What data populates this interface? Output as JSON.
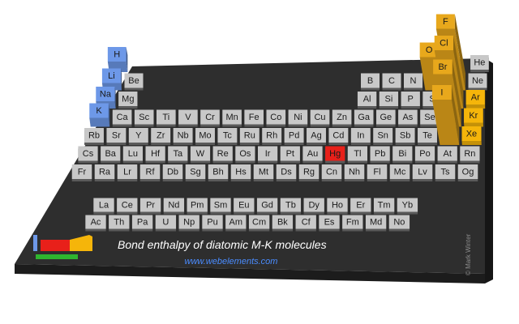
{
  "chart_data": {
    "type": "bar3d",
    "title": "Bond enthalpy of diatomic M-K molecules",
    "credit": "www.webelements.com",
    "copyright": "© Mark Winter",
    "tile_color": "#c8c8c8",
    "symbols": [
      "H",
      "He",
      "Li",
      "Be",
      "B",
      "C",
      "N",
      "O",
      "F",
      "Ne",
      "Na",
      "Mg",
      "Al",
      "Si",
      "P",
      "S",
      "Cl",
      "Ar",
      "K",
      "Ca",
      "Sc",
      "Ti",
      "V",
      "Cr",
      "Mn",
      "Fe",
      "Co",
      "Ni",
      "Cu",
      "Zn",
      "Ga",
      "Ge",
      "As",
      "Se",
      "Br",
      "Kr",
      "Rb",
      "Sr",
      "Y",
      "Zr",
      "Nb",
      "Mo",
      "Tc",
      "Ru",
      "Rh",
      "Pd",
      "Ag",
      "Cd",
      "In",
      "Sn",
      "Sb",
      "Te",
      "I",
      "Xe",
      "Cs",
      "Ba",
      "La",
      "Ce",
      "Pr",
      "Nd",
      "Pm",
      "Sm",
      "Eu",
      "Gd",
      "Tb",
      "Dy",
      "Ho",
      "Er",
      "Tm",
      "Yb",
      "Lu",
      "Hf",
      "Ta",
      "W",
      "Re",
      "Os",
      "Ir",
      "Pt",
      "Au",
      "Hg",
      "Tl",
      "Pb",
      "Bi",
      "Po",
      "At",
      "Rn",
      "Fr",
      "Ra",
      "Ac",
      "Th",
      "Pa",
      "U",
      "Np",
      "Pu",
      "Am",
      "Cm",
      "Bk",
      "Cf",
      "Es",
      "Fm",
      "Md",
      "No",
      "Lr",
      "Rf",
      "Db",
      "Sg",
      "Bh",
      "Hs",
      "Mt",
      "Ds",
      "Rg",
      "Cn",
      "Nh",
      "Fl",
      "Mc",
      "Lv",
      "Ts",
      "Og"
    ],
    "values": [
      10,
      null,
      6,
      null,
      null,
      null,
      null,
      38,
      73,
      null,
      6,
      null,
      null,
      null,
      null,
      null,
      69,
      2,
      8,
      null,
      null,
      null,
      null,
      null,
      null,
      null,
      null,
      null,
      null,
      null,
      null,
      null,
      null,
      null,
      62,
      2,
      null,
      null,
      null,
      null,
      null,
      null,
      null,
      null,
      null,
      null,
      null,
      null,
      null,
      null,
      null,
      null,
      53,
      2,
      null,
      null,
      null,
      null,
      null,
      null,
      null,
      null,
      null,
      null,
      null,
      null,
      null,
      null,
      null,
      null,
      null,
      null,
      null,
      null,
      null,
      null,
      null,
      null,
      null,
      null,
      null,
      null,
      null,
      null,
      null,
      null,
      null,
      null,
      null,
      null,
      null,
      null,
      null,
      null,
      null,
      null,
      null,
      null,
      null,
      null,
      null,
      null,
      null,
      null,
      null,
      null,
      null,
      null,
      null,
      null,
      null,
      null,
      null,
      null,
      null,
      null,
      null,
      null
    ],
    "colors": [
      "#6d98e8",
      null,
      "#6d98e8",
      null,
      null,
      null,
      null,
      "#e8a81c",
      "#e8a81c",
      null,
      "#6d98e8",
      null,
      null,
      null,
      null,
      null,
      "#e8a81c",
      "#f5b50a",
      "#6d98e8",
      null,
      null,
      null,
      null,
      null,
      null,
      null,
      null,
      null,
      null,
      null,
      null,
      null,
      null,
      null,
      "#e8a81c",
      "#f5b50a",
      null,
      null,
      null,
      null,
      null,
      null,
      null,
      null,
      null,
      null,
      null,
      null,
      null,
      null,
      null,
      null,
      "#e8a81c",
      "#f5b50a",
      null,
      null,
      null,
      null,
      null,
      null,
      null,
      null,
      null,
      null,
      null,
      null,
      null,
      null,
      null,
      null,
      null,
      null,
      null,
      null,
      null,
      null,
      null,
      null,
      null,
      "#e8201a",
      null,
      null,
      null,
      null,
      null,
      null,
      null,
      null,
      null,
      null,
      null,
      null,
      null,
      null,
      null,
      null,
      null,
      null,
      null,
      null,
      null,
      null,
      null,
      null,
      null,
      null,
      null,
      null,
      null,
      null,
      null,
      null,
      null,
      null,
      null,
      null,
      null,
      null
    ]
  }
}
